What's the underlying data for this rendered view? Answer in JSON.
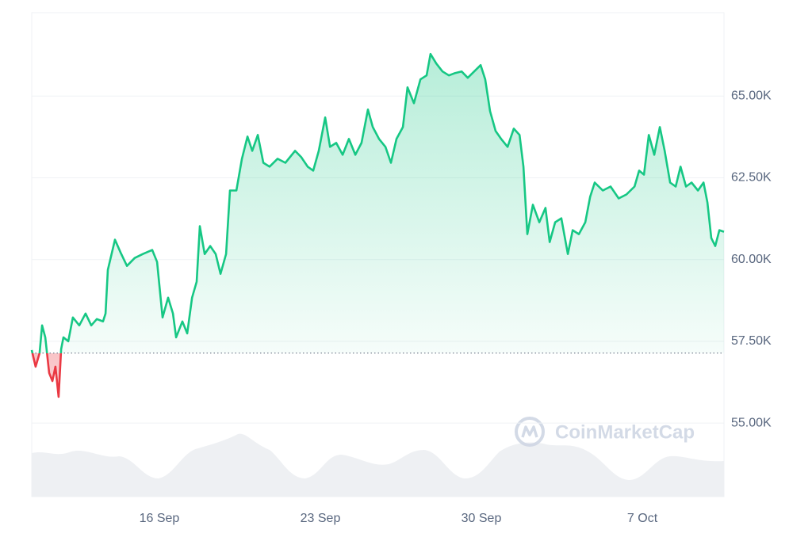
{
  "chart_data": {
    "type": "line",
    "color": "#16c784",
    "negative_color": "#ea3943",
    "baseline": 57140,
    "grid": true,
    "watermark": "CoinMarketCap",
    "xlim": [
      10.45,
      40.55
    ],
    "xticks": [
      {
        "value": 16,
        "label": "16 Sep"
      },
      {
        "value": 23,
        "label": "23 Sep"
      },
      {
        "value": 30,
        "label": "30 Sep"
      },
      {
        "value": 37,
        "label": "7 Oct"
      }
    ],
    "ylim": [
      52750,
      67550
    ],
    "yticks": [
      {
        "value": 55000,
        "label": "55.00K"
      },
      {
        "value": 57500,
        "label": "57.50K"
      },
      {
        "value": 60000,
        "label": "60.00K"
      },
      {
        "value": 62500,
        "label": "62.50K"
      },
      {
        "value": 65000,
        "label": "65.00K"
      }
    ],
    "x": [
      10.45,
      10.62,
      10.79,
      10.9,
      11.04,
      11.21,
      11.35,
      11.48,
      11.62,
      11.73,
      11.83,
      12.04,
      12.24,
      12.52,
      12.79,
      13.04,
      13.28,
      13.55,
      13.66,
      13.76,
      14.07,
      14.31,
      14.59,
      14.93,
      15.28,
      15.69,
      15.9,
      16.14,
      16.38,
      16.59,
      16.73,
      17.0,
      17.21,
      17.42,
      17.62,
      17.76,
      17.97,
      18.21,
      18.45,
      18.66,
      18.9,
      19.07,
      19.35,
      19.59,
      19.83,
      20.04,
      20.28,
      20.52,
      20.79,
      21.14,
      21.48,
      21.9,
      22.17,
      22.45,
      22.69,
      22.93,
      23.21,
      23.42,
      23.69,
      23.97,
      24.24,
      24.52,
      24.79,
      25.07,
      25.28,
      25.55,
      25.83,
      26.07,
      26.31,
      26.59,
      26.79,
      27.07,
      27.35,
      27.62,
      27.79,
      28.04,
      28.31,
      28.59,
      28.86,
      29.14,
      29.41,
      29.69,
      29.97,
      30.17,
      30.38,
      30.62,
      30.86,
      31.14,
      31.41,
      31.66,
      31.83,
      32.0,
      32.24,
      32.52,
      32.79,
      32.97,
      33.21,
      33.48,
      33.76,
      33.97,
      34.24,
      34.52,
      34.73,
      34.93,
      35.28,
      35.62,
      35.97,
      36.31,
      36.66,
      36.86,
      37.07,
      37.28,
      37.52,
      37.76,
      37.97,
      38.21,
      38.45,
      38.66,
      38.9,
      39.14,
      39.42,
      39.66,
      39.83,
      40.0,
      40.17,
      40.35,
      40.55
    ],
    "values": [
      57234,
      56724,
      57137,
      57986,
      57622,
      56530,
      56287,
      56724,
      55802,
      57258,
      57622,
      57501,
      58229,
      57986,
      58350,
      57986,
      58180,
      58107,
      58350,
      59685,
      60607,
      60219,
      59806,
      60049,
      60170,
      60292,
      59928,
      58229,
      58835,
      58350,
      57622,
      58107,
      57743,
      58835,
      59321,
      61020,
      60170,
      60413,
      60170,
      59564,
      60170,
      62112,
      62112,
      63083,
      63762,
      63325,
      63811,
      62961,
      62840,
      63083,
      62961,
      63325,
      63131,
      62840,
      62719,
      63325,
      64345,
      63447,
      63568,
      63204,
      63689,
      63204,
      63568,
      64587,
      64053,
      63689,
      63447,
      62961,
      63689,
      64053,
      65267,
      64782,
      65510,
      65631,
      66286,
      65995,
      65752,
      65631,
      65704,
      65752,
      65558,
      65752,
      65947,
      65510,
      64539,
      63932,
      63689,
      63447,
      64005,
      63811,
      62840,
      60777,
      61675,
      61141,
      61578,
      60534,
      61141,
      61262,
      60170,
      60898,
      60777,
      61141,
      61918,
      62355,
      62112,
      62233,
      61869,
      61991,
      62233,
      62719,
      62597,
      63811,
      63204,
      64053,
      63325,
      62355,
      62233,
      62840,
      62233,
      62355,
      62112,
      62355,
      61748,
      60656,
      60413,
      60898,
      60850
    ]
  }
}
